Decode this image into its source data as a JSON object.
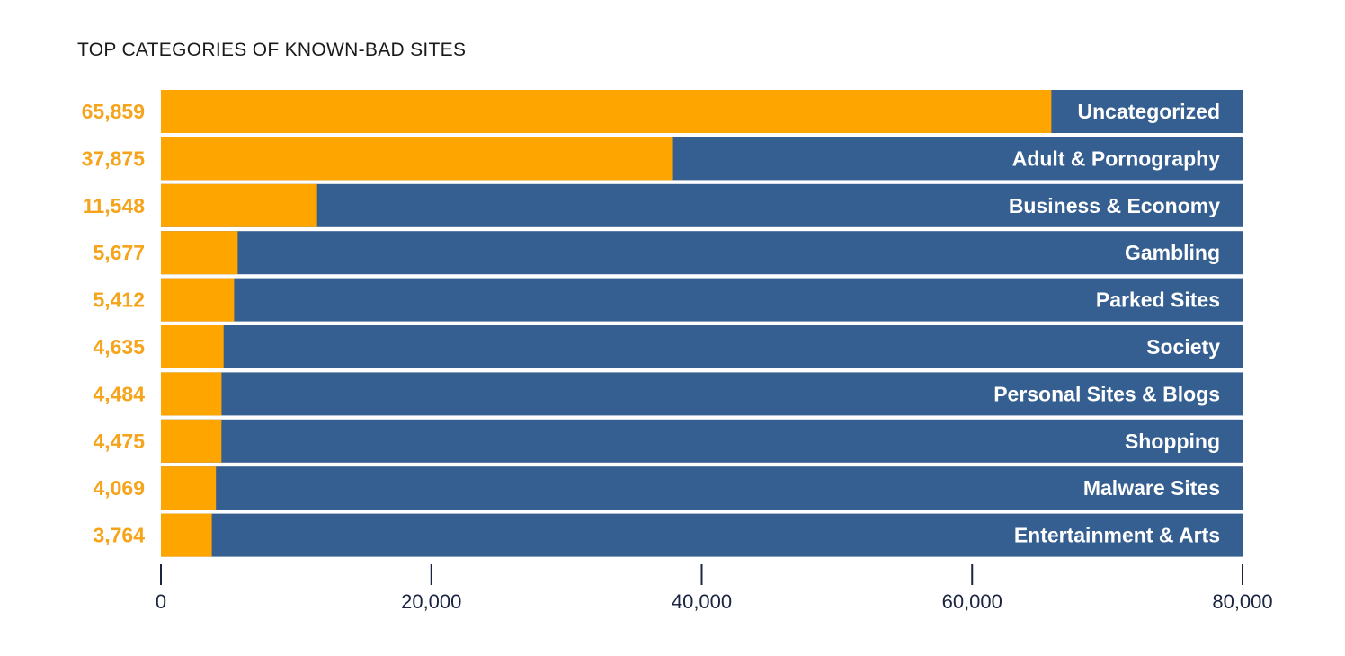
{
  "chart_data": {
    "type": "bar",
    "orientation": "horizontal",
    "title": "TOP CATEGORIES OF KNOWN-BAD SITES",
    "categories": [
      "Uncategorized",
      "Adult & Pornography",
      "Business & Economy",
      "Gambling",
      "Parked Sites",
      "Society",
      "Personal Sites & Blogs",
      "Shopping",
      "Malware Sites",
      "Entertainment & Arts"
    ],
    "values": [
      65859,
      37875,
      11548,
      5677,
      5412,
      4635,
      4484,
      4475,
      4069,
      3764
    ],
    "value_labels": [
      "65,859",
      "37,875",
      "11,548",
      "5,677",
      "5,412",
      "4,635",
      "4,484",
      "4,475",
      "4,069",
      "3,764"
    ],
    "xlim": [
      0,
      80000
    ],
    "xticks": [
      0,
      20000,
      40000,
      60000,
      80000
    ],
    "xtick_labels": [
      "0",
      "20,000",
      "40,000",
      "60,000",
      "80,000"
    ],
    "colors": {
      "value_bar": "#FFA500",
      "track": "#365F91",
      "value_text": "#F5A41C",
      "axis": "#1b2440"
    }
  }
}
